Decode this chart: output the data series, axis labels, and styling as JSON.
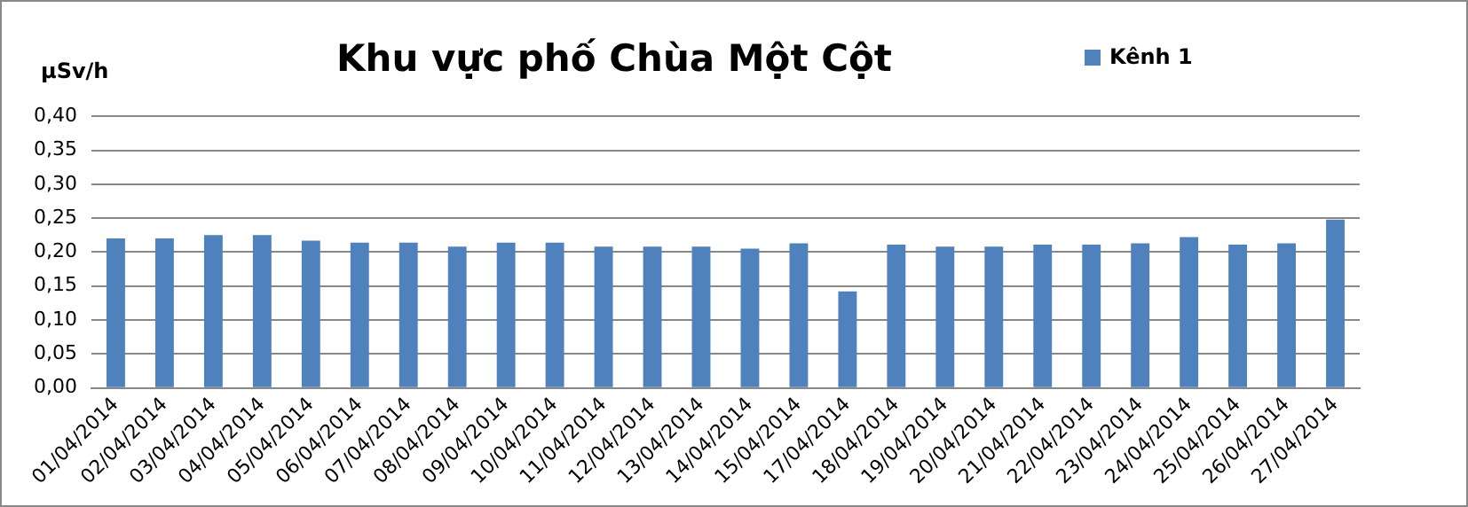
{
  "chart_data": {
    "type": "bar",
    "title": "Khu vực phố Chùa Một Cột",
    "ylabel": "µSv/h",
    "categories": [
      "01/04/2014",
      "02/04/2014",
      "03/04/2014",
      "04/04/2014",
      "05/04/2014",
      "06/04/2014",
      "07/04/2014",
      "08/04/2014",
      "09/04/2014",
      "10/04/2014",
      "11/04/2014",
      "12/04/2014",
      "13/04/2014",
      "14/04/2014",
      "15/04/2014",
      "17/04/2014",
      "18/04/2014",
      "19/04/2014",
      "20/04/2014",
      "21/04/2014",
      "22/04/2014",
      "23/04/2014",
      "24/04/2014",
      "25/04/2014",
      "26/04/2014",
      "27/04/2014"
    ],
    "series": [
      {
        "name": "Kênh 1",
        "color": "#4f81bd",
        "values": [
          0.22,
          0.22,
          0.225,
          0.225,
          0.217,
          0.214,
          0.214,
          0.208,
          0.214,
          0.214,
          0.208,
          0.208,
          0.208,
          0.205,
          0.213,
          0.142,
          0.211,
          0.208,
          0.208,
          0.211,
          0.211,
          0.213,
          0.222,
          0.211,
          0.213,
          0.248
        ]
      }
    ],
    "ylim": [
      0,
      0.4
    ],
    "yticks": [
      {
        "value": 0,
        "label": "0,00"
      },
      {
        "value": 0.05,
        "label": "0,05"
      },
      {
        "value": 0.1,
        "label": "0,10"
      },
      {
        "value": 0.15,
        "label": "0,15"
      },
      {
        "value": 0.2,
        "label": "0,20"
      },
      {
        "value": 0.25,
        "label": "0,25"
      },
      {
        "value": 0.3,
        "label": "0,30"
      },
      {
        "value": 0.35,
        "label": "0,35"
      },
      {
        "value": 0.4,
        "label": "0,40"
      }
    ],
    "grid": "y",
    "legend": "top right"
  }
}
